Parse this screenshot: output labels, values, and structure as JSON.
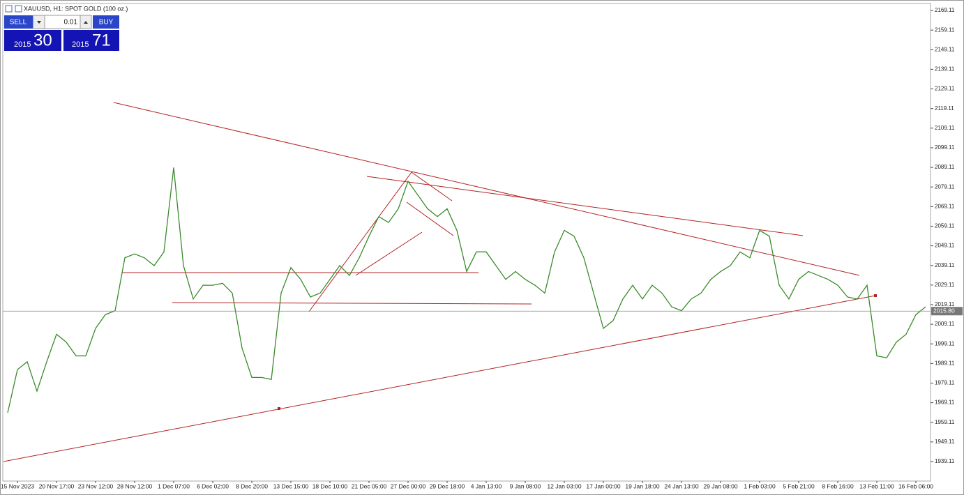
{
  "chart_data": {
    "type": "line",
    "title": "XAUUSD, H1:  SPOT GOLD (100 oz.)",
    "categories": [
      null,
      "15 Nov 2023",
      null,
      null,
      null,
      "20 Nov 17:00",
      null,
      null,
      null,
      "23 Nov 12:00",
      null,
      null,
      null,
      "28 Nov 12:00",
      null,
      null,
      null,
      "1 Dec 07:00",
      null,
      null,
      null,
      "6 Dec 02:00",
      null,
      null,
      null,
      "8 Dec 20:00",
      null,
      null,
      null,
      "13 Dec 15:00",
      null,
      null,
      null,
      "18 Dec 10:00",
      null,
      null,
      null,
      "21 Dec 05:00",
      null,
      null,
      null,
      "27 Dec 00:00",
      null,
      null,
      null,
      "29 Dec 18:00",
      null,
      null,
      null,
      "4 Jan 13:00",
      null,
      null,
      null,
      "9 Jan 08:00",
      null,
      null,
      null,
      "12 Jan 03:00",
      null,
      null,
      null,
      "17 Jan 00:00",
      null,
      null,
      null,
      "19 Jan 18:00",
      null,
      null,
      null,
      "24 Jan 13:00",
      null,
      null,
      null,
      "29 Jan 08:00",
      null,
      null,
      null,
      "1 Feb 03:00",
      null,
      null,
      null,
      "5 Feb 21:00",
      null,
      null,
      null,
      "8 Feb 16:00",
      null,
      null,
      null,
      "13 Feb 11:00",
      null,
      null,
      null,
      "16 Feb 06:00",
      null
    ],
    "series": [
      {
        "color": "#3a8a2a",
        "values": [
          1964,
          1986,
          1990,
          1975,
          1990,
          2004,
          2000,
          1993,
          1993,
          2007,
          2014,
          2016,
          2043,
          2045,
          2043,
          2039,
          2046,
          2089,
          2039,
          2022,
          2029,
          2029,
          2030,
          2025,
          1997,
          1982,
          1982,
          1981,
          2025,
          2038,
          2032,
          2023,
          2025,
          2032,
          2039,
          2034,
          2043,
          2054,
          2064,
          2061,
          2068,
          2082,
          2075,
          2068,
          2064,
          2068,
          2057,
          2036,
          2046,
          2046,
          2039,
          2032,
          2036,
          2032,
          2029,
          2025,
          2046,
          2057,
          2054,
          2043,
          2025,
          2007,
          2011,
          2022,
          2029,
          2022,
          2029,
          2025,
          2018,
          2016,
          2022,
          2025,
          2032,
          2036,
          2039,
          2046,
          2043,
          2057,
          2054,
          2029,
          2022,
          2032,
          2036,
          2034,
          2032,
          2029,
          2023,
          2022,
          2029,
          1993,
          1992,
          2000,
          2004,
          2014,
          2018
        ]
      }
    ],
    "ylim": [
      1929.16,
      2172.67
    ],
    "yticks": [
      1939.11,
      1949.11,
      1959.11,
      1969.11,
      1979.11,
      1989.11,
      1999.11,
      2009.11,
      2019.11,
      2029.11,
      2039.11,
      2049.11,
      2059.11,
      2069.11,
      2079.11,
      2089.11,
      2099.11,
      2109.11,
      2119.11,
      2129.11,
      2139.11,
      2149.11,
      2159.11,
      2169.11
    ],
    "current_price": {
      "value": 2015.8,
      "label": "2015.80"
    }
  },
  "trade_panel": {
    "sell": "SELL",
    "buy": "BUY",
    "lot": "0.01",
    "bid_big": "2015",
    "bid_small": "30",
    "ask_big": "2015",
    "ask_small": "71"
  }
}
